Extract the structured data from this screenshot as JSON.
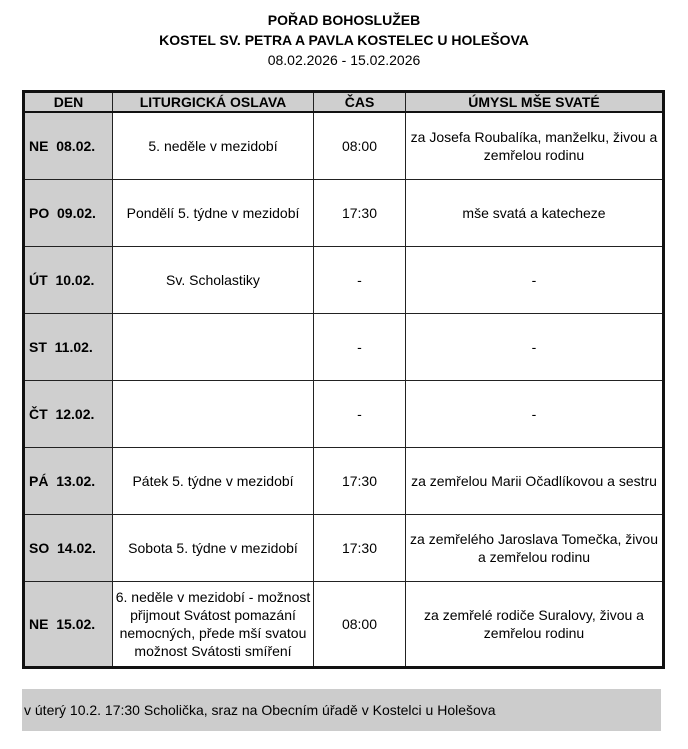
{
  "header": {
    "title": "POŘAD BOHOSLUŽEB",
    "subtitle": "KOSTEL SV. PETRA A PAVLA KOSTELEC U HOLEŠOVA",
    "date_range": "08.02.2026 - 15.02.2026"
  },
  "table": {
    "columns": [
      "DEN",
      "LITURGICKÁ OSLAVA",
      "ČAS",
      "ÚMYSL MŠE SVATÉ"
    ],
    "rows": [
      {
        "day": "NE  08.02.",
        "celebration": "5. neděle v mezidobí",
        "time": "08:00",
        "intention": "za Josefa Roubalíka, manželku, živou a zemřelou rodinu"
      },
      {
        "day": "PO  09.02.",
        "celebration": "Pondělí 5. týdne v mezidobí",
        "time": "17:30",
        "intention": "mše svatá a katecheze"
      },
      {
        "day": "ÚT  10.02.",
        "celebration": "Sv. Scholastiky",
        "time": "-",
        "intention": "-"
      },
      {
        "day": "ST  11.02.",
        "celebration": "",
        "time": "-",
        "intention": "-"
      },
      {
        "day": "ČT  12.02.",
        "celebration": "",
        "time": "-",
        "intention": "-"
      },
      {
        "day": "PÁ  13.02.",
        "celebration": "Pátek 5. týdne v mezidobí",
        "time": "17:30",
        "intention": "za zemřelou Marii Očadlíkovou a sestru"
      },
      {
        "day": "SO  14.02.",
        "celebration": "Sobota 5. týdne v mezidobí",
        "time": "17:30",
        "intention": "za zemřelého Jaroslava Tomečka, živou a zemřelou rodinu"
      },
      {
        "day": "NE  15.02.",
        "celebration": "6. neděle v mezidobí - možnost přijmout Svátost pomazání nemocných, přede mší svatou možnost Svátosti smíření",
        "time": "08:00",
        "intention": "za zemřelé rodiče Suralovy, živou a zemřelou rodinu"
      }
    ]
  },
  "note": "v úterý 10.2. 17:30 Scholička, sraz na Obecním úřadě v Kostelci u Holešova",
  "colors": {
    "header_bg": "#cfcfcf",
    "note_bg": "#cccccc"
  }
}
